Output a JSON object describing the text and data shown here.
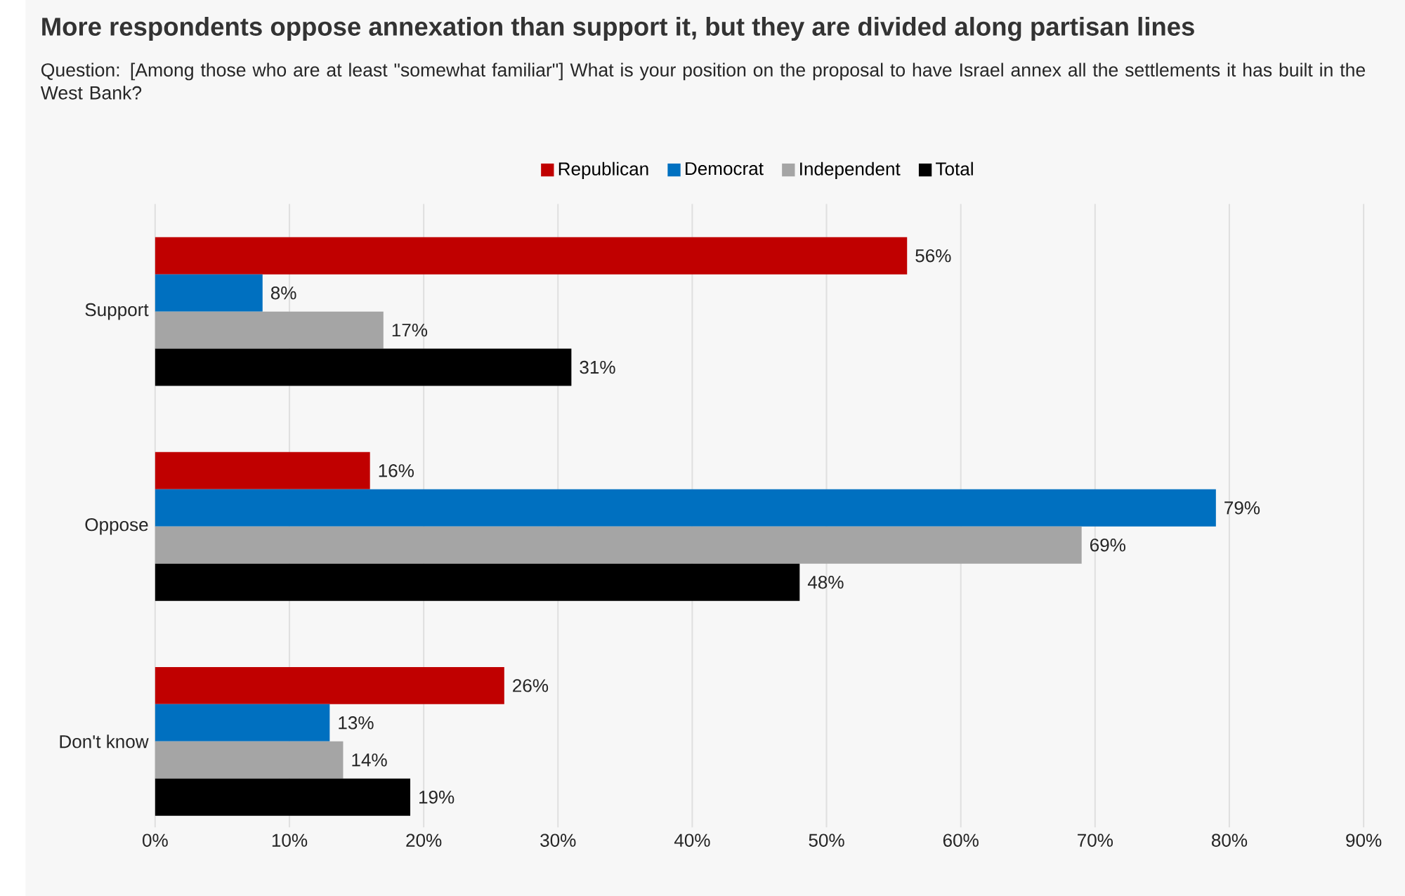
{
  "chart_data": {
    "type": "bar",
    "orientation": "horizontal",
    "title": "More respondents oppose annexation than support it, but they are divided along partisan lines",
    "subtitle": "Question: [Among those who are at least \"somewhat familiar\"] What is your position on the proposal to have Israel annex all the settlements it has built in the West Bank?",
    "categories": [
      "Support",
      "Oppose",
      "Don't know"
    ],
    "series": [
      {
        "name": "Republican",
        "color": "#c00000",
        "values": [
          56,
          16,
          26
        ],
        "value_labels": [
          "56%",
          "16%",
          "26%"
        ]
      },
      {
        "name": "Democrat",
        "color": "#0070c0",
        "values": [
          8,
          79,
          13
        ],
        "value_labels": [
          "8%",
          "79%",
          "13%"
        ]
      },
      {
        "name": "Independent",
        "color": "#a5a5a5",
        "values": [
          17,
          69,
          14
        ],
        "value_labels": [
          "17%",
          "69%",
          "14%"
        ]
      },
      {
        "name": "Total",
        "color": "#000000",
        "values": [
          31,
          48,
          19
        ],
        "value_labels": [
          "31%",
          "48%",
          "19%"
        ]
      }
    ],
    "xlim": [
      0,
      90
    ],
    "xticks": [
      {
        "value": 0,
        "label": "0%"
      },
      {
        "value": 10,
        "label": "10%"
      },
      {
        "value": 20,
        "label": "20%"
      },
      {
        "value": 30,
        "label": "30%"
      },
      {
        "value": 40,
        "label": "40%"
      },
      {
        "value": 50,
        "label": "50%"
      },
      {
        "value": 60,
        "label": "60%"
      },
      {
        "value": 70,
        "label": "70%"
      },
      {
        "value": 80,
        "label": "80%"
      },
      {
        "value": 90,
        "label": "90%"
      }
    ],
    "grid": "x",
    "legend": "top"
  }
}
